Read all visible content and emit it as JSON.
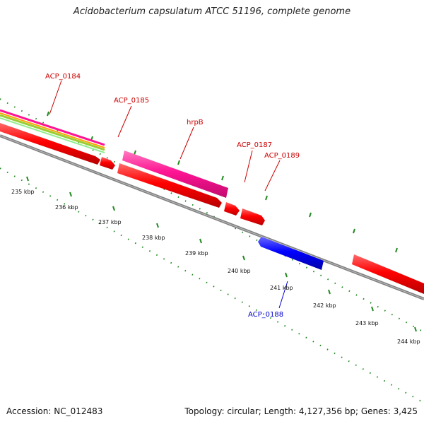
{
  "title": "Acidobacterium capsulatum ATCC 51196, complete genome",
  "footer": {
    "accession": "Accession: NC_012483",
    "topology": "Topology: circular; Length: 4,127,356 bp; Genes: 3,425"
  },
  "colors": {
    "gene_red": "#ff0000",
    "gene_pink": "#ff1493",
    "gene_blue": "#0000ff",
    "backbone": "#808080",
    "tick_green": "#228b22",
    "label_red": "#cc0000",
    "label_blue": "#0000cc"
  },
  "scale_labels": [
    "235 kbp",
    "236 kbp",
    "237 kbp",
    "238 kbp",
    "239 kbp",
    "240 kbp",
    "241 kbp",
    "242 kbp",
    "243 kbp",
    "244 kbp"
  ],
  "gene_labels": {
    "acp0184": "ACP_0184",
    "acp0185": "ACP_0185",
    "hrpb": "hrpB",
    "acp0187": "ACP_0187",
    "acp0189": "ACP_0189",
    "acp0188": "ACP_0188"
  }
}
